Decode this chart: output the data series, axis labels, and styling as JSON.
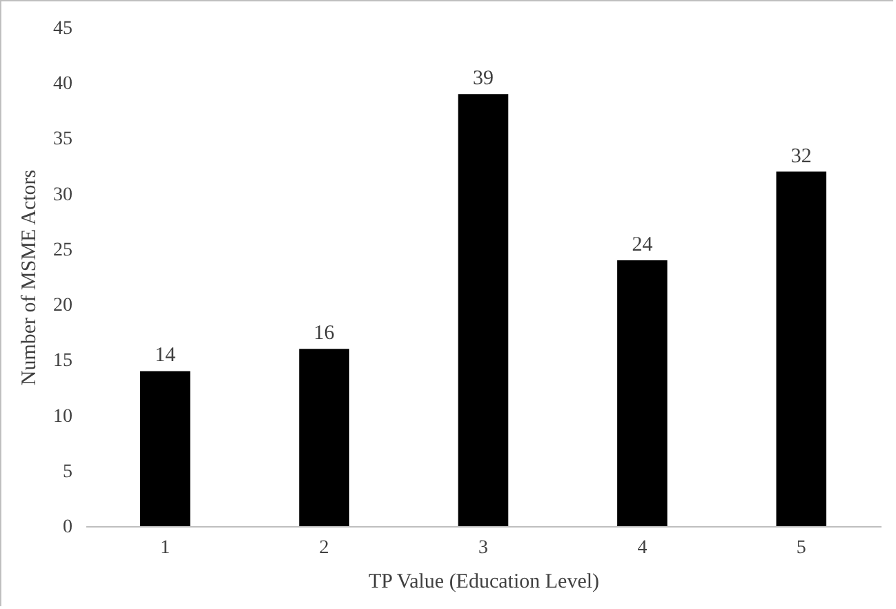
{
  "chart_data": {
    "type": "bar",
    "xlabel": "TP Value (Education Level)",
    "ylabel": "Number of MSME Actors",
    "categories": [
      "1",
      "2",
      "3",
      "4",
      "5"
    ],
    "values": [
      14,
      16,
      39,
      24,
      32
    ],
    "color": "#000000",
    "ylim": [
      0,
      45
    ],
    "yticks": [
      0,
      5,
      10,
      15,
      20,
      25,
      30,
      35,
      40,
      45
    ],
    "grid": false,
    "data_labels": true
  }
}
